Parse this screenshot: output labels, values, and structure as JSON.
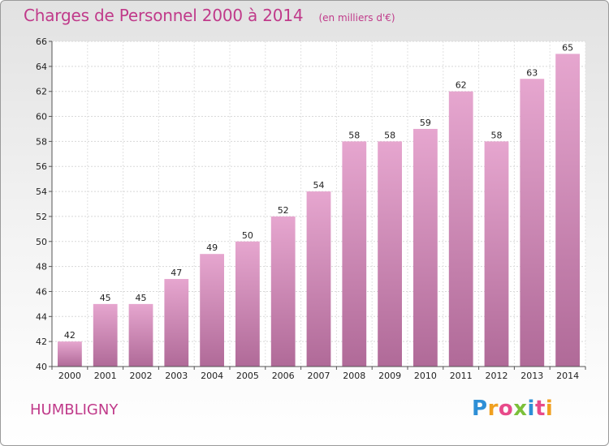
{
  "title": "Charges de Personnel 2000 à 2014",
  "subtitle": "(en milliers d'€)",
  "place": "HUMBLIGNY",
  "logo": {
    "letters": [
      "P",
      "r",
      "o",
      "x",
      "i",
      "t",
      "i"
    ],
    "colors": [
      "#2e8fd6",
      "#f0a020",
      "#e84a8a",
      "#7cc03a",
      "#2e8fd6",
      "#e84a8a",
      "#f0a020"
    ]
  },
  "chart_data": {
    "type": "bar",
    "categories": [
      "2000",
      "2001",
      "2002",
      "2003",
      "2004",
      "2005",
      "2006",
      "2007",
      "2008",
      "2009",
      "2010",
      "2011",
      "2012",
      "2013",
      "2014"
    ],
    "values": [
      42,
      45,
      45,
      47,
      49,
      50,
      52,
      54,
      58,
      58,
      59,
      62,
      58,
      63,
      65
    ],
    "ylim": [
      40,
      66
    ],
    "yticks": [
      40,
      42,
      44,
      46,
      48,
      50,
      52,
      54,
      56,
      58,
      60,
      62,
      64,
      66
    ],
    "grid": true,
    "bar_color": "#d88ab8"
  }
}
